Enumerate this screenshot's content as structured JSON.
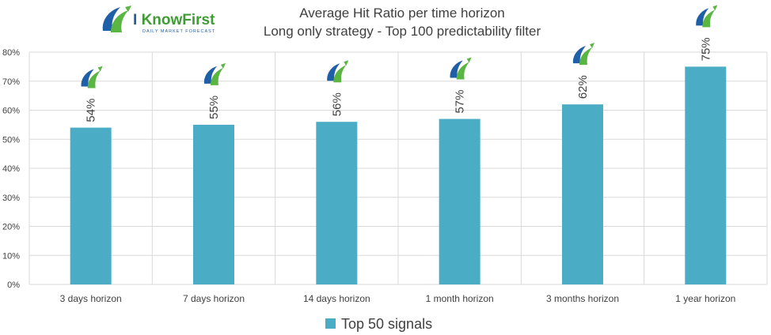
{
  "logo": {
    "brand_prefix": "I ",
    "brand_name": "KnowFirst",
    "tagline": "DAILY MARKET FORECAST"
  },
  "colors": {
    "bar": "#4BACC6",
    "grid": "#d9d9d9",
    "text": "#404040",
    "logo_blue": "#1f5fa8",
    "logo_green": "#5bb543"
  },
  "chart_data": {
    "type": "bar",
    "title": "Average Hit Ratio per time horizon",
    "subtitle": "Long only strategy - Top 100 predictability filter",
    "categories": [
      "3 days horizon",
      "7 days horizon",
      "14 days horizon",
      "1 month horizon",
      "3 months horizon",
      "1 year horizon"
    ],
    "series": [
      {
        "name": "Top 50 signals",
        "values": [
          54,
          55,
          56,
          57,
          62,
          75
        ],
        "color": "#4BACC6"
      }
    ],
    "data_labels": [
      "54%",
      "55%",
      "56%",
      "57%",
      "62%",
      "75%"
    ],
    "data_label_icon": "i-know-first-logo-icon",
    "y_ticks": [
      "0%",
      "10%",
      "20%",
      "30%",
      "40%",
      "50%",
      "60%",
      "70%",
      "80%"
    ],
    "ylim": [
      0,
      80
    ],
    "xlabel": "",
    "ylabel": "",
    "grid": true,
    "legend_position": "bottom"
  }
}
